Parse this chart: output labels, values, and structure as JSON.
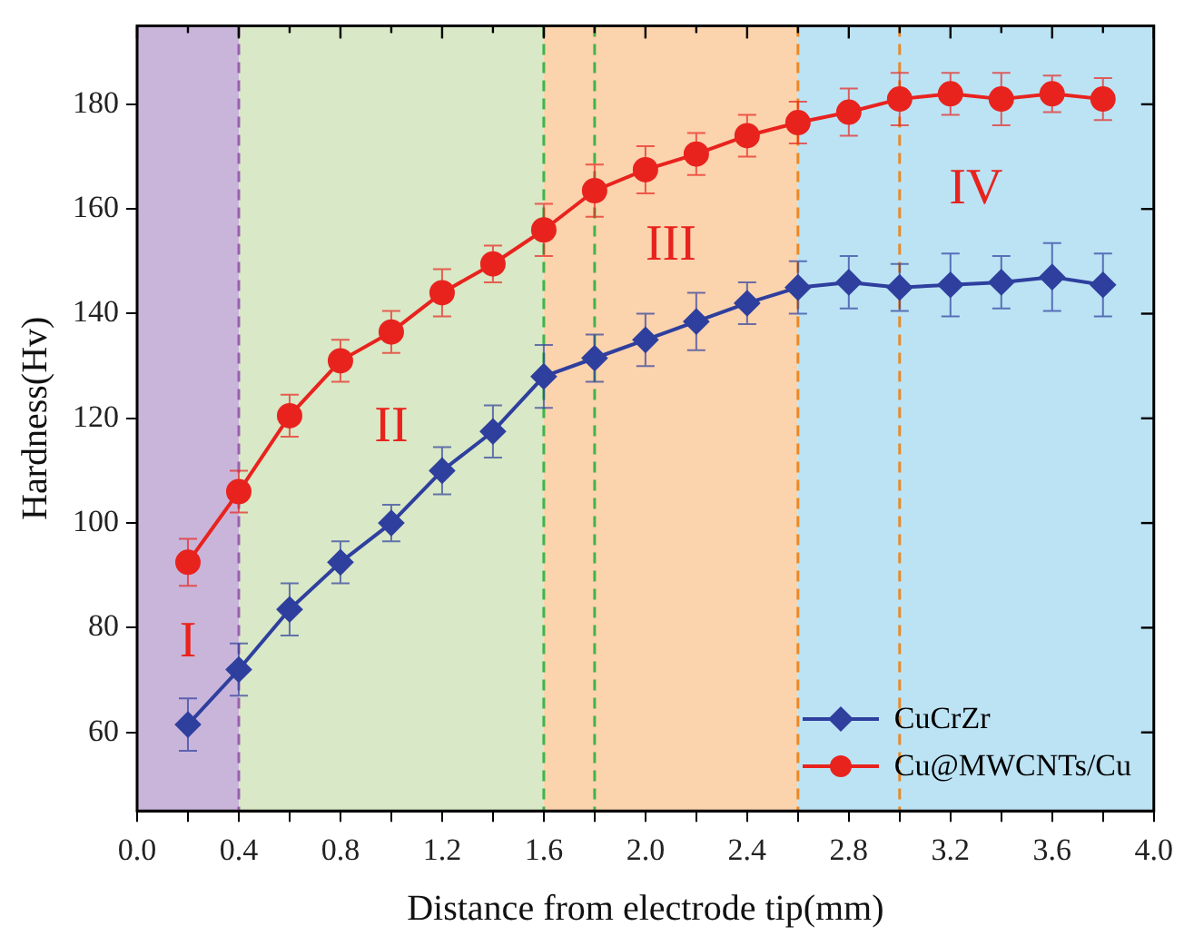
{
  "chart_data": {
    "type": "line",
    "xlabel": "Distance from electrode tip(mm)",
    "ylabel": "Hardness(Hv)",
    "x": [
      0.2,
      0.4,
      0.6,
      0.8,
      1.0,
      1.2,
      1.4,
      1.6,
      1.8,
      2.0,
      2.2,
      2.4,
      2.6,
      2.8,
      3.0,
      3.2,
      3.4,
      3.6,
      3.8
    ],
    "series": [
      {
        "name": "CuCrZr",
        "color": "#2e3f9e",
        "marker": "diamond",
        "values": [
          61.5,
          72,
          83.5,
          92.5,
          100,
          110,
          117.5,
          128,
          131.5,
          135,
          138.5,
          142,
          145,
          146,
          145,
          145.5,
          146,
          147,
          145.5
        ],
        "errors": [
          5,
          5,
          5,
          4,
          3.5,
          4.5,
          5,
          6,
          4.5,
          5,
          5.5,
          4,
          5,
          5,
          4.5,
          6,
          5,
          6.5,
          6
        ]
      },
      {
        "name": "Cu@MWCNTs/Cu",
        "color": "#e8231e",
        "marker": "circle",
        "values": [
          92.5,
          106,
          120.5,
          131,
          136.5,
          144,
          149.5,
          156,
          163.5,
          167.5,
          170.5,
          174,
          176.5,
          178.5,
          181,
          182,
          181,
          182,
          181
        ],
        "errors": [
          4.5,
          4,
          4,
          4,
          4,
          4.5,
          3.5,
          5,
          5,
          4.5,
          4,
          4,
          4,
          4.5,
          5,
          4,
          5,
          3.5,
          4
        ]
      }
    ],
    "xlim": [
      0,
      4
    ],
    "xticks": [
      {
        "value": 0,
        "label": "0.0"
      },
      {
        "value": 0.2,
        "label": null
      },
      {
        "value": 0.4,
        "label": "0.4"
      },
      {
        "value": 0.6,
        "label": null
      },
      {
        "value": 0.8,
        "label": "0.8"
      },
      {
        "value": 1.0,
        "label": null
      },
      {
        "value": 1.2,
        "label": "1.2"
      },
      {
        "value": 1.4,
        "label": null
      },
      {
        "value": 1.6,
        "label": "1.6"
      },
      {
        "value": 1.8,
        "label": null
      },
      {
        "value": 2.0,
        "label": "2.0"
      },
      {
        "value": 2.2,
        "label": null
      },
      {
        "value": 2.4,
        "label": "2.4"
      },
      {
        "value": 2.6,
        "label": null
      },
      {
        "value": 2.8,
        "label": "2.8"
      },
      {
        "value": 3.0,
        "label": null
      },
      {
        "value": 3.2,
        "label": "3.2"
      },
      {
        "value": 3.4,
        "label": null
      },
      {
        "value": 3.6,
        "label": "3.6"
      },
      {
        "value": 3.8,
        "label": null
      },
      {
        "value": 4.0,
        "label": "4.0"
      }
    ],
    "ylim": [
      45,
      195
    ],
    "yticks": [
      60,
      80,
      100,
      120,
      140,
      160,
      180
    ],
    "bands": [
      {
        "axis": "x",
        "from": 0,
        "to": 0.4,
        "color": "#c9b5da",
        "label": "I"
      },
      {
        "axis": "x",
        "from": 0.4,
        "to": 1.6,
        "color": "#d9e8c6",
        "label": "II"
      },
      {
        "axis": "x",
        "from": 1.6,
        "to": 2.6,
        "color": "#fbd3ad",
        "label": "III"
      },
      {
        "axis": "x",
        "from": 2.6,
        "to": 4.0,
        "color": "#bce3f4",
        "label": "IV"
      }
    ],
    "ref_lines": [
      {
        "axis": "x",
        "value": 0.4,
        "color": "#9b5fb0",
        "line_style": "dashed"
      },
      {
        "axis": "x",
        "value": 1.6,
        "color": "#3fb54a",
        "line_style": "dashed"
      },
      {
        "axis": "x",
        "value": 1.8,
        "color": "#3fb54a",
        "line_style": "dashed"
      },
      {
        "axis": "x",
        "value": 2.6,
        "color": "#e88a26",
        "line_style": "dashed"
      },
      {
        "axis": "x",
        "value": 3.0,
        "color": "#e88a26",
        "line_style": "dashed"
      }
    ],
    "legend": "bottom right",
    "grid": false,
    "line_style": "solid"
  }
}
